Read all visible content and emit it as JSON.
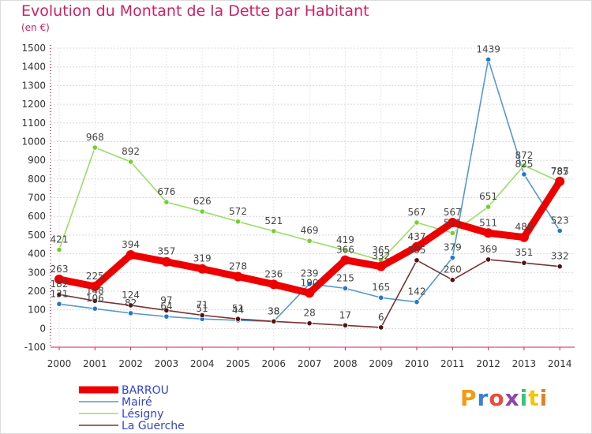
{
  "title": "Evolution du Montant de la Dette par Habitant",
  "unit": "(en €)",
  "logo": [
    "P",
    "r",
    "o",
    "x",
    "i",
    "t",
    "i"
  ],
  "chart_data": {
    "type": "line",
    "x": [
      "2000",
      "2001",
      "2002",
      "2003",
      "2004",
      "2005",
      "2006",
      "2007",
      "2008",
      "2009",
      "2010",
      "2011",
      "2012",
      "2013",
      "2014"
    ],
    "yticks": [
      -100,
      0,
      100,
      200,
      300,
      400,
      500,
      600,
      700,
      800,
      900,
      1000,
      1100,
      1200,
      1300,
      1400,
      1500
    ],
    "ylim": [
      -100,
      1500
    ],
    "legend_position": "bottom-left",
    "series": [
      {
        "name": "Mairé",
        "color": "#5599cc",
        "point": "#2277cc",
        "values": [
          131,
          106,
          82,
          64,
          51,
          44,
          38,
          239,
          215,
          165,
          142,
          379,
          1439,
          825,
          523
        ]
      },
      {
        "name": "Lésigny",
        "color": "#99dd66",
        "point": "#77cc33",
        "values": [
          421,
          968,
          892,
          676,
          626,
          572,
          521,
          469,
          419,
          365,
          567,
          511,
          651,
          872,
          785
        ]
      },
      {
        "name": "La Guerche",
        "color": "#773333",
        "point": "#551111",
        "values": [
          182,
          148,
          124,
          97,
          71,
          51,
          38,
          28,
          17,
          6,
          365,
          260,
          369,
          351,
          332
        ]
      },
      {
        "name": "BARROU",
        "color": "#ee0000",
        "point": "#ee0000",
        "values": [
          263,
          225,
          394,
          357,
          319,
          278,
          236,
          190,
          366,
          332,
          437,
          567,
          511,
          488,
          787
        ]
      }
    ]
  }
}
